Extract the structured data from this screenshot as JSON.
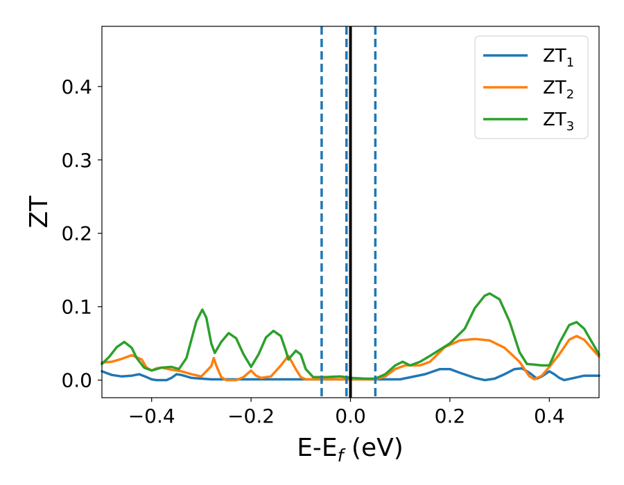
{
  "chart_data": {
    "type": "line",
    "title": "",
    "xlabel": {
      "main": "E-E",
      "sub": "f",
      "unit": " (eV)"
    },
    "ylabel": "ZT",
    "xlim": [
      -0.5,
      0.5
    ],
    "ylim": [
      -0.024,
      0.482
    ],
    "grid": false,
    "legend_position": "top-right",
    "x_ticks": [
      {
        "value": -0.4,
        "label": "−0.4"
      },
      {
        "value": -0.2,
        "label": "−0.2"
      },
      {
        "value": 0.0,
        "label": "0.0"
      },
      {
        "value": 0.2,
        "label": "0.2"
      },
      {
        "value": 0.4,
        "label": "0.4"
      }
    ],
    "y_ticks": [
      {
        "value": 0.0,
        "label": "0.0"
      },
      {
        "value": 0.1,
        "label": "0.1"
      },
      {
        "value": 0.2,
        "label": "0.2"
      },
      {
        "value": 0.3,
        "label": "0.3"
      },
      {
        "value": 0.4,
        "label": "0.4"
      }
    ],
    "vertical_lines": [
      {
        "x": -0.058,
        "style": "dashed",
        "color": "#1f77b4"
      },
      {
        "x": -0.008,
        "style": "dashed",
        "color": "#1f77b4"
      },
      {
        "x": 0.05,
        "style": "dashed",
        "color": "#1f77b4"
      },
      {
        "x": 0.0,
        "style": "solid",
        "color": "#000000"
      }
    ],
    "series": [
      {
        "name": "ZT",
        "sub": "1",
        "color": "#1f77b4",
        "points": [
          [
            -0.5,
            0.012
          ],
          [
            -0.48,
            0.007
          ],
          [
            -0.46,
            0.005
          ],
          [
            -0.44,
            0.006
          ],
          [
            -0.425,
            0.008
          ],
          [
            -0.41,
            0.004
          ],
          [
            -0.4,
            0.001
          ],
          [
            -0.39,
            0.0
          ],
          [
            -0.37,
            0.0
          ],
          [
            -0.36,
            0.003
          ],
          [
            -0.35,
            0.008
          ],
          [
            -0.34,
            0.007
          ],
          [
            -0.32,
            0.003
          ],
          [
            -0.3,
            0.002
          ],
          [
            -0.28,
            0.001
          ],
          [
            -0.2,
            0.001
          ],
          [
            -0.1,
            0.001
          ],
          [
            -0.05,
            0.001
          ],
          [
            0.0,
            0.001
          ],
          [
            0.1,
            0.001
          ],
          [
            0.15,
            0.008
          ],
          [
            0.18,
            0.015
          ],
          [
            0.2,
            0.015
          ],
          [
            0.22,
            0.01
          ],
          [
            0.25,
            0.003
          ],
          [
            0.27,
            0.0
          ],
          [
            0.29,
            0.002
          ],
          [
            0.31,
            0.008
          ],
          [
            0.33,
            0.015
          ],
          [
            0.345,
            0.016
          ],
          [
            0.36,
            0.01
          ],
          [
            0.375,
            0.002
          ],
          [
            0.385,
            0.005
          ],
          [
            0.4,
            0.012
          ],
          [
            0.41,
            0.008
          ],
          [
            0.42,
            0.003
          ],
          [
            0.43,
            0.0
          ],
          [
            0.45,
            0.003
          ],
          [
            0.47,
            0.006
          ],
          [
            0.5,
            0.006
          ]
        ]
      },
      {
        "name": "ZT",
        "sub": "2",
        "color": "#ff7f0e",
        "points": [
          [
            -0.5,
            0.024
          ],
          [
            -0.48,
            0.025
          ],
          [
            -0.46,
            0.029
          ],
          [
            -0.44,
            0.034
          ],
          [
            -0.42,
            0.028
          ],
          [
            -0.41,
            0.017
          ],
          [
            -0.4,
            0.013
          ],
          [
            -0.39,
            0.016
          ],
          [
            -0.38,
            0.017
          ],
          [
            -0.36,
            0.014
          ],
          [
            -0.34,
            0.012
          ],
          [
            -0.32,
            0.008
          ],
          [
            -0.3,
            0.005
          ],
          [
            -0.28,
            0.019
          ],
          [
            -0.275,
            0.03
          ],
          [
            -0.27,
            0.02
          ],
          [
            -0.26,
            0.004
          ],
          [
            -0.25,
            0.0
          ],
          [
            -0.23,
            0.0
          ],
          [
            -0.215,
            0.004
          ],
          [
            -0.2,
            0.013
          ],
          [
            -0.19,
            0.006
          ],
          [
            -0.18,
            0.003
          ],
          [
            -0.16,
            0.005
          ],
          [
            -0.14,
            0.02
          ],
          [
            -0.125,
            0.033
          ],
          [
            -0.11,
            0.015
          ],
          [
            -0.1,
            0.004
          ],
          [
            -0.09,
            0.001
          ],
          [
            -0.06,
            0.001
          ],
          [
            -0.03,
            0.001
          ],
          [
            0.0,
            0.001
          ],
          [
            0.03,
            0.001
          ],
          [
            0.05,
            0.001
          ],
          [
            0.07,
            0.005
          ],
          [
            0.09,
            0.015
          ],
          [
            0.11,
            0.02
          ],
          [
            0.14,
            0.02
          ],
          [
            0.16,
            0.025
          ],
          [
            0.19,
            0.045
          ],
          [
            0.22,
            0.054
          ],
          [
            0.25,
            0.056
          ],
          [
            0.28,
            0.054
          ],
          [
            0.31,
            0.044
          ],
          [
            0.34,
            0.025
          ],
          [
            0.36,
            0.005
          ],
          [
            0.37,
            0.001
          ],
          [
            0.385,
            0.006
          ],
          [
            0.4,
            0.018
          ],
          [
            0.42,
            0.035
          ],
          [
            0.44,
            0.055
          ],
          [
            0.455,
            0.06
          ],
          [
            0.47,
            0.055
          ],
          [
            0.5,
            0.032
          ]
        ]
      },
      {
        "name": "ZT",
        "sub": "3",
        "color": "#2ca02c",
        "points": [
          [
            -0.5,
            0.022
          ],
          [
            -0.485,
            0.032
          ],
          [
            -0.47,
            0.045
          ],
          [
            -0.455,
            0.052
          ],
          [
            -0.44,
            0.044
          ],
          [
            -0.43,
            0.03
          ],
          [
            -0.415,
            0.017
          ],
          [
            -0.4,
            0.013
          ],
          [
            -0.38,
            0.017
          ],
          [
            -0.36,
            0.018
          ],
          [
            -0.345,
            0.015
          ],
          [
            -0.33,
            0.03
          ],
          [
            -0.31,
            0.08
          ],
          [
            -0.298,
            0.096
          ],
          [
            -0.29,
            0.085
          ],
          [
            -0.28,
            0.05
          ],
          [
            -0.273,
            0.037
          ],
          [
            -0.26,
            0.052
          ],
          [
            -0.245,
            0.064
          ],
          [
            -0.23,
            0.057
          ],
          [
            -0.215,
            0.035
          ],
          [
            -0.2,
            0.018
          ],
          [
            -0.185,
            0.035
          ],
          [
            -0.17,
            0.058
          ],
          [
            -0.155,
            0.067
          ],
          [
            -0.14,
            0.06
          ],
          [
            -0.13,
            0.04
          ],
          [
            -0.125,
            0.028
          ],
          [
            -0.11,
            0.04
          ],
          [
            -0.1,
            0.035
          ],
          [
            -0.09,
            0.015
          ],
          [
            -0.075,
            0.004
          ],
          [
            -0.05,
            0.004
          ],
          [
            -0.02,
            0.005
          ],
          [
            0.0,
            0.003
          ],
          [
            0.03,
            0.002
          ],
          [
            0.05,
            0.002
          ],
          [
            0.07,
            0.008
          ],
          [
            0.09,
            0.02
          ],
          [
            0.105,
            0.025
          ],
          [
            0.12,
            0.02
          ],
          [
            0.14,
            0.025
          ],
          [
            0.16,
            0.033
          ],
          [
            0.2,
            0.05
          ],
          [
            0.23,
            0.07
          ],
          [
            0.25,
            0.098
          ],
          [
            0.27,
            0.115
          ],
          [
            0.28,
            0.118
          ],
          [
            0.3,
            0.11
          ],
          [
            0.32,
            0.08
          ],
          [
            0.34,
            0.038
          ],
          [
            0.355,
            0.022
          ],
          [
            0.37,
            0.021
          ],
          [
            0.385,
            0.02
          ],
          [
            0.4,
            0.02
          ],
          [
            0.42,
            0.05
          ],
          [
            0.44,
            0.075
          ],
          [
            0.455,
            0.079
          ],
          [
            0.47,
            0.07
          ],
          [
            0.5,
            0.035
          ]
        ]
      }
    ]
  }
}
